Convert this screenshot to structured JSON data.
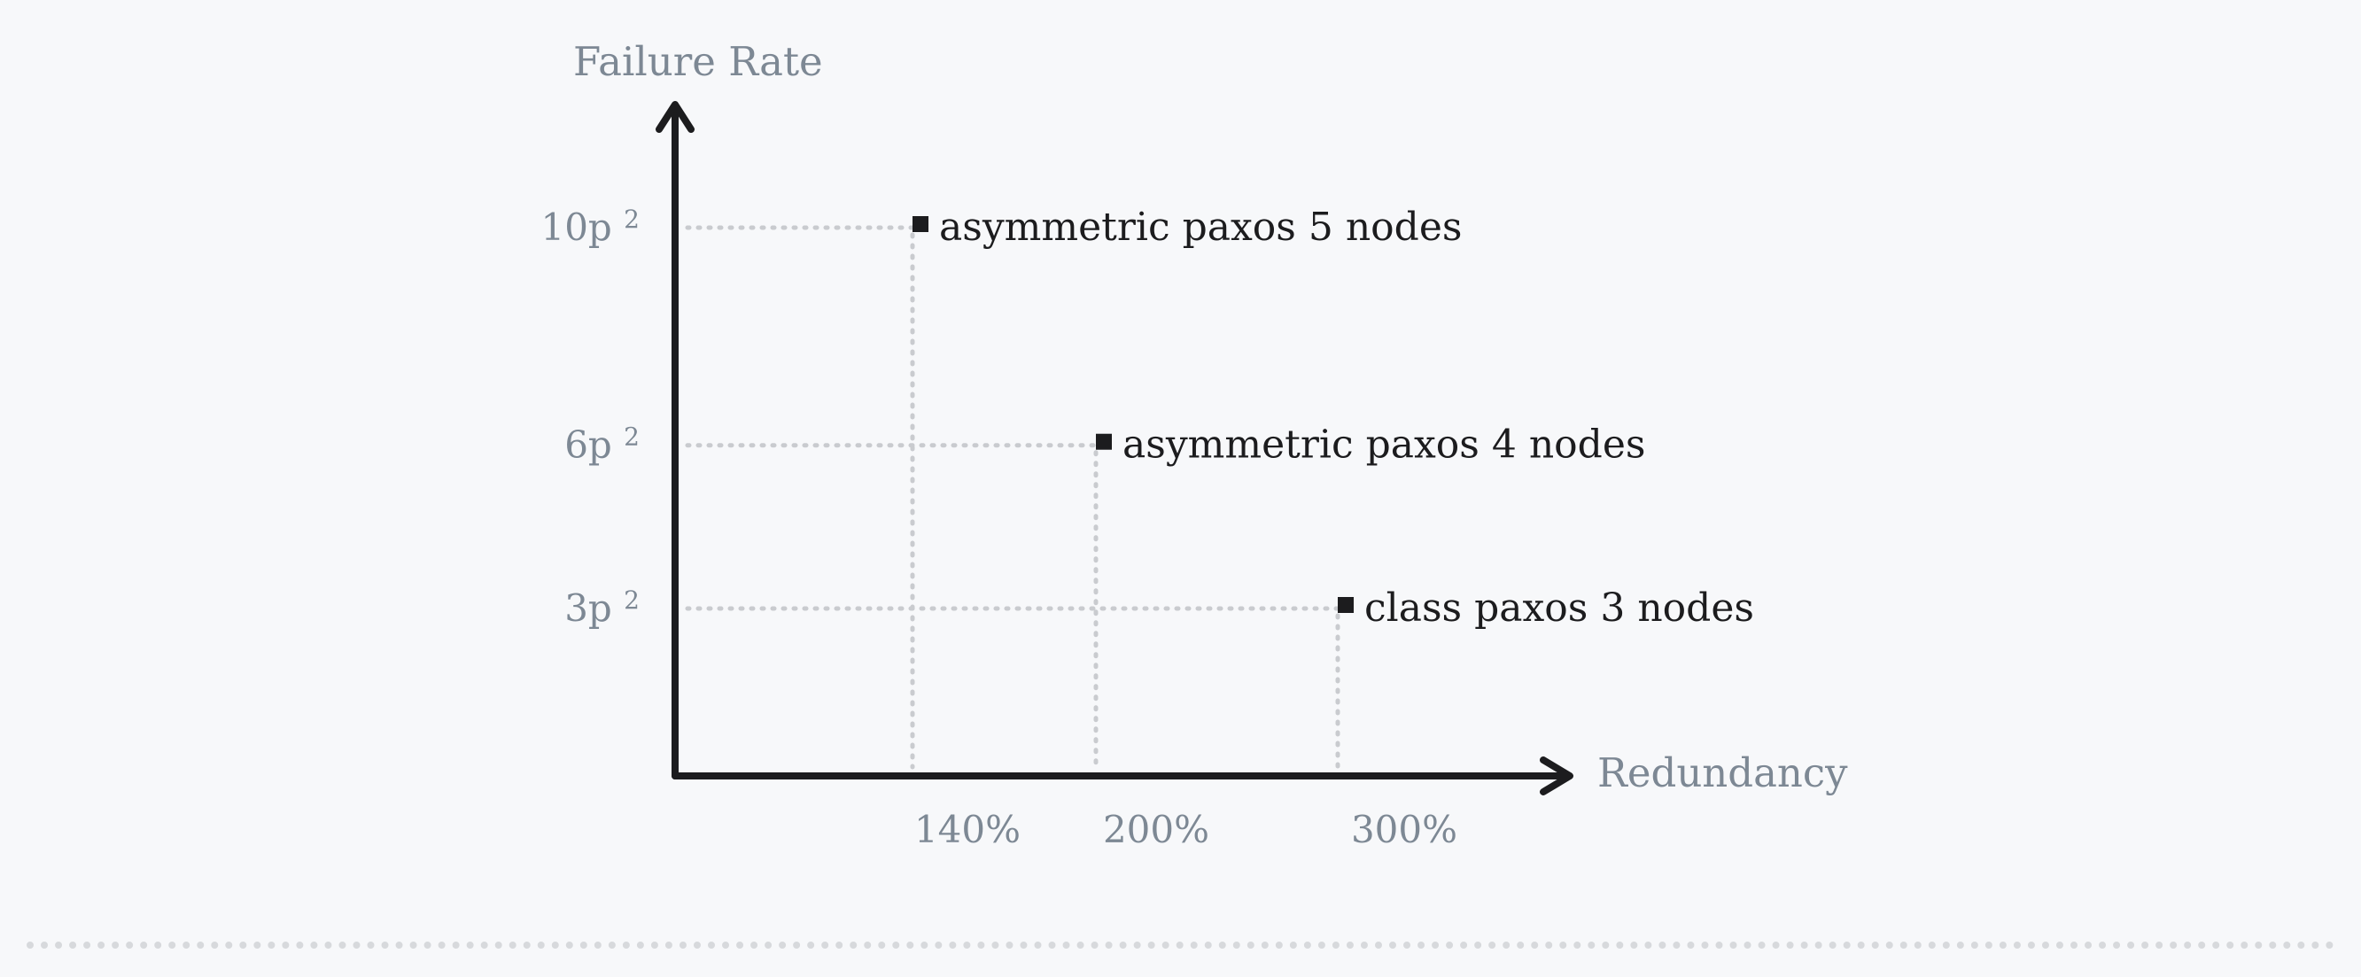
{
  "chart_data": {
    "type": "scatter",
    "xlabel": "Redundancy",
    "ylabel": "Failure Rate",
    "x_ticks": [
      "140%",
      "200%",
      "300%"
    ],
    "y_ticks": [
      {
        "base": "10p",
        "sup": "2"
      },
      {
        "base": "6p",
        "sup": "2"
      },
      {
        "base": "3p",
        "sup": "2"
      }
    ],
    "points": [
      {
        "x": "140%",
        "y": 10,
        "label": "asymmetric paxos 5 nodes"
      },
      {
        "x": "200%",
        "y": 6,
        "label": "asymmetric paxos 4 nodes"
      },
      {
        "x": "300%",
        "y": 3,
        "label": "class paxos 3 nodes"
      }
    ],
    "y_unit": "p²",
    "grid": "dotted guide lines to axes",
    "colors": {
      "axis": "#1c1c1e",
      "guide": "#c9cbcf",
      "label_muted": "#7d8894",
      "point": "#1c1c1e"
    }
  }
}
